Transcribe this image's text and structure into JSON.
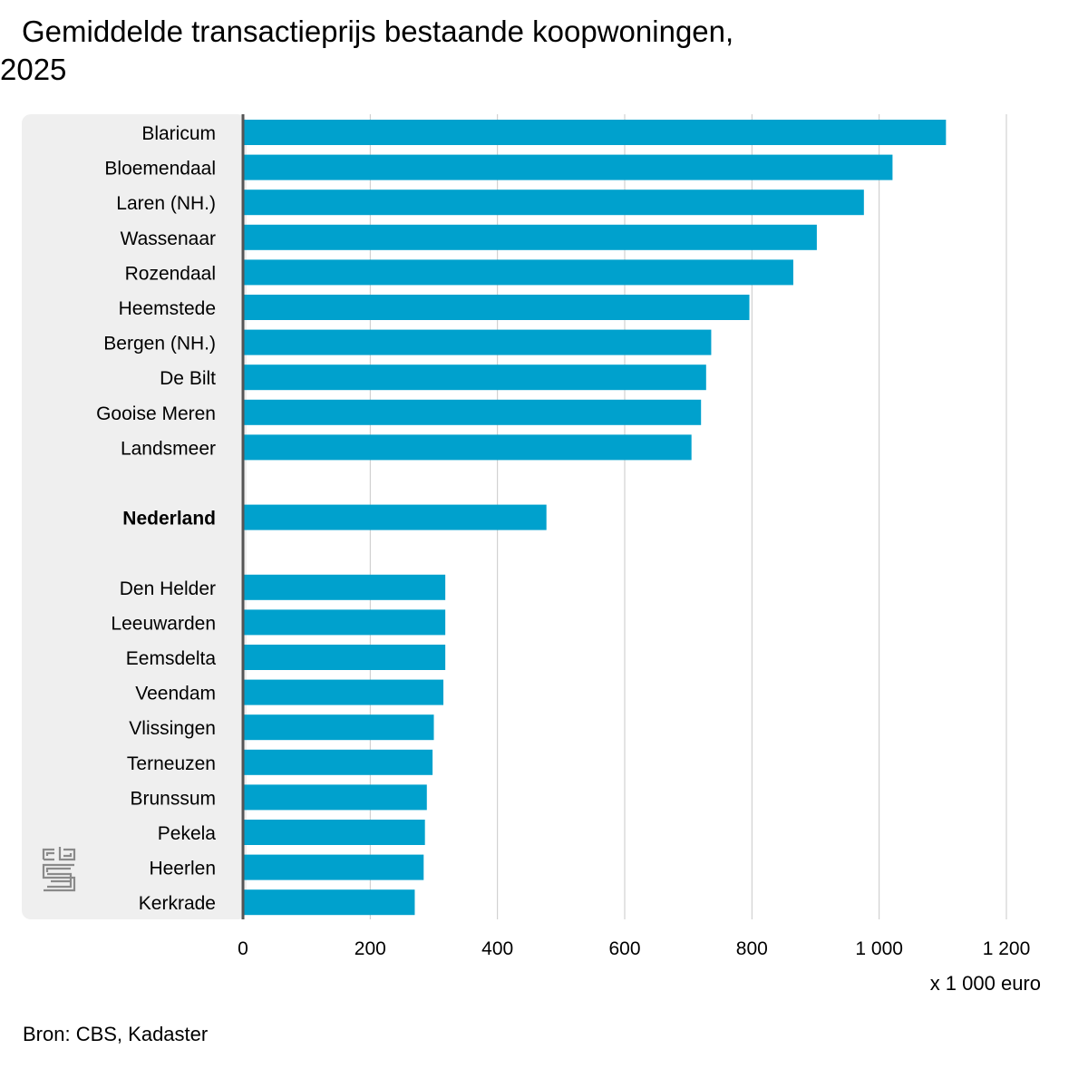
{
  "title": {
    "line1": "Gemiddelde transactieprijs bestaande koopwoningen,",
    "line2": "2025"
  },
  "source": "Bron: CBS, Kadaster",
  "unit": "x 1 000 euro",
  "colors": {
    "bar": "#00a1cd",
    "panel": "#efefef",
    "grid": "#c8c8c8",
    "axis": "#555555"
  },
  "chart_data": {
    "type": "bar",
    "orientation": "horizontal",
    "categories": [
      "Blaricum",
      "Bloemendaal",
      "Laren (NH.)",
      "Wassenaar",
      "Rozendaal",
      "Heemstede",
      "Bergen (NH.)",
      "De Bilt",
      "Gooise Meren",
      "Landsmeer",
      "Nederland",
      "Den Helder",
      "Leeuwarden",
      "Eemsdelta",
      "Veendam",
      "Vlissingen",
      "Terneuzen",
      "Brunssum",
      "Pekela",
      "Heerlen",
      "Kerkrade"
    ],
    "values": [
      1105,
      1021,
      976,
      902,
      865,
      796,
      736,
      728,
      720,
      705,
      477,
      318,
      318,
      318,
      315,
      300,
      298,
      289,
      286,
      284,
      270
    ],
    "highlight": "Nederland",
    "xlim": [
      0,
      1200
    ],
    "xticks": [
      0,
      200,
      400,
      600,
      800,
      1000,
      1200
    ],
    "xtick_labels": [
      "0",
      "200",
      "400",
      "600",
      "800",
      "1 000",
      "1 200"
    ],
    "xlabel": "x 1 000 euro",
    "grid": true
  }
}
